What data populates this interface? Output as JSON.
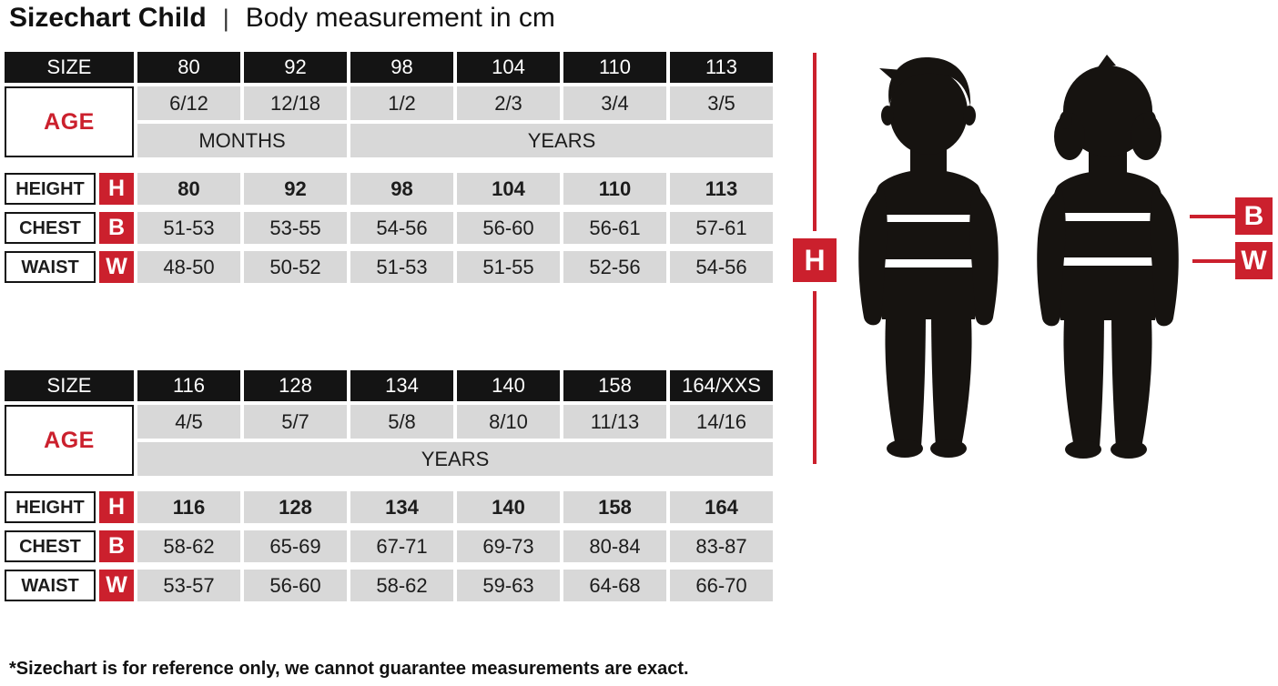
{
  "title": {
    "main": "Sizechart Child",
    "separator": "|",
    "subtitle": "Body measurement in cm"
  },
  "labels": {
    "size": "SIZE",
    "age": "AGE",
    "height": "HEIGHT",
    "chest": "CHEST",
    "waist": "WAIST",
    "h": "H",
    "b": "B",
    "w": "W"
  },
  "tables": [
    {
      "sizes": [
        "80",
        "92",
        "98",
        "104",
        "110",
        "113"
      ],
      "ages": [
        "6/12",
        "12/18",
        "1/2",
        "2/3",
        "3/4",
        "3/5"
      ],
      "age_units": [
        {
          "label": "MONTHS",
          "span": 2
        },
        {
          "label": "YEARS",
          "span": 4
        }
      ],
      "height": [
        "80",
        "92",
        "98",
        "104",
        "110",
        "113"
      ],
      "chest": [
        "51-53",
        "53-55",
        "54-56",
        "56-60",
        "56-61",
        "57-61"
      ],
      "waist": [
        "48-50",
        "50-52",
        "51-53",
        "51-55",
        "52-56",
        "54-56"
      ]
    },
    {
      "sizes": [
        "116",
        "128",
        "134",
        "140",
        "158",
        "164/XXS"
      ],
      "ages": [
        "4/5",
        "5/7",
        "5/8",
        "8/10",
        "11/13",
        "14/16"
      ],
      "age_units": [
        {
          "label": "YEARS",
          "span": 6
        }
      ],
      "height": [
        "116",
        "128",
        "134",
        "140",
        "158",
        "164"
      ],
      "chest": [
        "58-62",
        "65-69",
        "67-71",
        "69-73",
        "80-84",
        "83-87"
      ],
      "waist": [
        "53-57",
        "56-60",
        "58-62",
        "59-63",
        "64-68",
        "66-70"
      ]
    }
  ],
  "figure": {
    "height_label": "H",
    "bust_label": "B",
    "waist_label": "W"
  },
  "footer": "*Sizechart is for reference only, we cannot guarantee measurements are exact.",
  "colors": {
    "accent_red": "#cb202d",
    "header_black": "#141414",
    "cell_grey": "#d8d8d8"
  }
}
